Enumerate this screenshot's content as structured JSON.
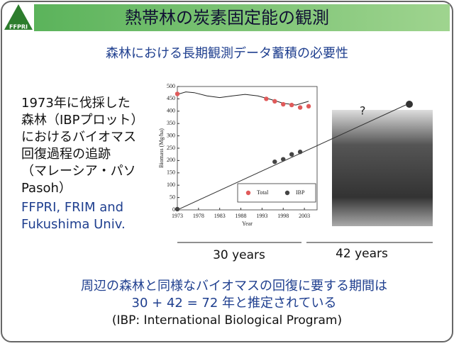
{
  "header": {
    "logo": "FFPRI",
    "title": "熱帯林の炭素固定能の観測"
  },
  "subtitle": "森林における長期観測データ蓄積の必要性",
  "description": [
    "1973年に伐採した",
    "森林（IBPプロット）",
    "におけるバイオマス",
    "回復過程の追跡",
    "（マレーシア・パソ",
    "Pasoh）"
  ],
  "credits": [
    "FFPRI, FRIM and",
    "Fukushima Univ."
  ],
  "chart_data": {
    "type": "scatter",
    "xlabel": "Year",
    "ylabel": "Biomass (Mg/ha)",
    "xlim": [
      1973,
      2006
    ],
    "ylim": [
      0,
      500
    ],
    "xticks": [
      1973,
      1978,
      1983,
      1988,
      1993,
      1998,
      2003
    ],
    "yticks": [
      0,
      50,
      100,
      150,
      200,
      250,
      300,
      350,
      400,
      450,
      500
    ],
    "series": [
      {
        "name": "Total",
        "color": "#e05a5a",
        "x": [
          1973,
          1994,
          1996,
          1998,
          2000,
          2002,
          2004
        ],
        "values": [
          470,
          450,
          440,
          428,
          425,
          415,
          420
        ]
      },
      {
        "name": "IBP",
        "color": "#444444",
        "x": [
          1973,
          1996,
          1998,
          2000,
          2002
        ],
        "values": [
          3,
          195,
          205,
          225,
          235
        ]
      }
    ],
    "curve": {
      "color": "#222222",
      "x": [
        1973,
        1975,
        1977,
        1980,
        1983,
        1986,
        1989,
        1992,
        1995,
        1998,
        2001,
        2004
      ],
      "values": [
        468,
        478,
        475,
        462,
        455,
        462,
        468,
        462,
        448,
        432,
        425,
        440
      ]
    },
    "annotation": "?"
  },
  "periods": [
    "30 years",
    "42 years"
  ],
  "conclusion": [
    "周辺の森林と同様なバイオマスの回復に要する期間は",
    "30 + 42 = 72 年と推定されている",
    "(IBP: International Biological Program)"
  ]
}
